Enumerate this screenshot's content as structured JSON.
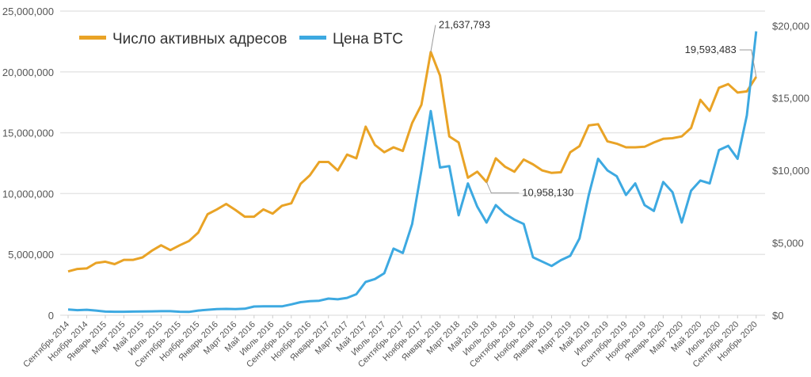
{
  "chart_data": {
    "type": "line",
    "title": "",
    "xlabel": "",
    "ylabel_left": "",
    "ylabel_right": "",
    "grid": true,
    "legend_position": "top-left",
    "colors": {
      "addresses": "#E9A326",
      "price": "#3DA9E1"
    },
    "x_tick_labels": [
      "Сентябрь 2014",
      "Ноябрь 2014",
      "Январь 2015",
      "Март 2015",
      "Май 2015",
      "Июль 2015",
      "Сентябрь 2015",
      "Ноябрь 2015",
      "Январь 2016",
      "Март 2016",
      "Май 2016",
      "Июль 2016",
      "Сентябрь 2016",
      "Ноябрь 2016",
      "Январь 2017",
      "Март 2017",
      "Май 2017",
      "Июль 2017",
      "Сентябрь 2017",
      "Ноябрь 2017",
      "Январь 2018",
      "Март 2018",
      "Май 2018",
      "Июль 2018",
      "Сентябрь 2018",
      "Ноябрь 2018",
      "Январь 2019",
      "Март 2019",
      "Май 2019",
      "Июль 2019",
      "Сентябрь 2019",
      "Ноябрь 2019",
      "Январь 2020",
      "Март 2020",
      "Май 2020",
      "Июль 2020",
      "Сентябрь 2020",
      "Ноябрь 2020"
    ],
    "x_range": [
      "Сентябрь 2014",
      "Ноябрь 2020"
    ],
    "y_left": {
      "range": [
        0,
        25000000
      ],
      "tick_labels": [
        "0",
        "5,000,000",
        "10,000,000",
        "15,000,000",
        "20,000,000",
        "25,000,000"
      ]
    },
    "y_right": {
      "range": [
        0,
        21000
      ],
      "tick_labels": [
        "$0",
        "$5,000",
        "$10,000",
        "$15,000",
        "$20,000"
      ]
    },
    "series": [
      {
        "name": "Число активных адресов",
        "axis": "left",
        "values": [
          3600000,
          3800000,
          3850000,
          4300000,
          4400000,
          4200000,
          4550000,
          4550000,
          4750000,
          5300000,
          5750000,
          5350000,
          5750000,
          6100000,
          6800000,
          8300000,
          8700000,
          9150000,
          8650000,
          8100000,
          8100000,
          8700000,
          8350000,
          9000000,
          9200000,
          10800000,
          11500000,
          12600000,
          12600000,
          11900000,
          13200000,
          12900000,
          15500000,
          14000000,
          13400000,
          13800000,
          13500000,
          15800000,
          17300000,
          21637793,
          19700000,
          14700000,
          14200000,
          11300000,
          11800000,
          10958130,
          12900000,
          12200000,
          11800000,
          12800000,
          12400000,
          11900000,
          11700000,
          11750000,
          13400000,
          13900000,
          15600000,
          15700000,
          14300000,
          14100000,
          13800000,
          13800000,
          13850000,
          14200000,
          14500000,
          14550000,
          14700000,
          15400000,
          17700000,
          16800000,
          18700000,
          19000000,
          18300000,
          18400000,
          19593483
        ]
      },
      {
        "name": "Цена BTC",
        "axis": "right",
        "values": [
          400,
          350,
          380,
          320,
          250,
          240,
          240,
          250,
          260,
          270,
          280,
          280,
          240,
          230,
          320,
          380,
          420,
          440,
          420,
          450,
          600,
          620,
          620,
          610,
          750,
          900,
          970,
          1000,
          1150,
          1100,
          1200,
          1450,
          2300,
          2500,
          2900,
          4600,
          4300,
          6300,
          10000,
          14100,
          10200,
          10300,
          6900,
          9100,
          7500,
          6400,
          7600,
          7000,
          6600,
          6300,
          4000,
          3700,
          3400,
          3800,
          4100,
          5300,
          8300,
          10800,
          10000,
          9600,
          8300,
          9100,
          7600,
          7200,
          9200,
          8500,
          6400,
          8600,
          9300,
          9100,
          11400,
          11700,
          10800,
          13800,
          19600
        ]
      }
    ],
    "annotations": [
      {
        "text": "21,637,793",
        "series": "Число активных адресов",
        "x": "Декабрь 2017"
      },
      {
        "text": "10,958,130",
        "series": "Число активных адресов",
        "x": "Июнь 2018"
      },
      {
        "text": "19,593,483",
        "series": "Число активных адресов",
        "x": "Ноябрь 2020"
      }
    ]
  }
}
